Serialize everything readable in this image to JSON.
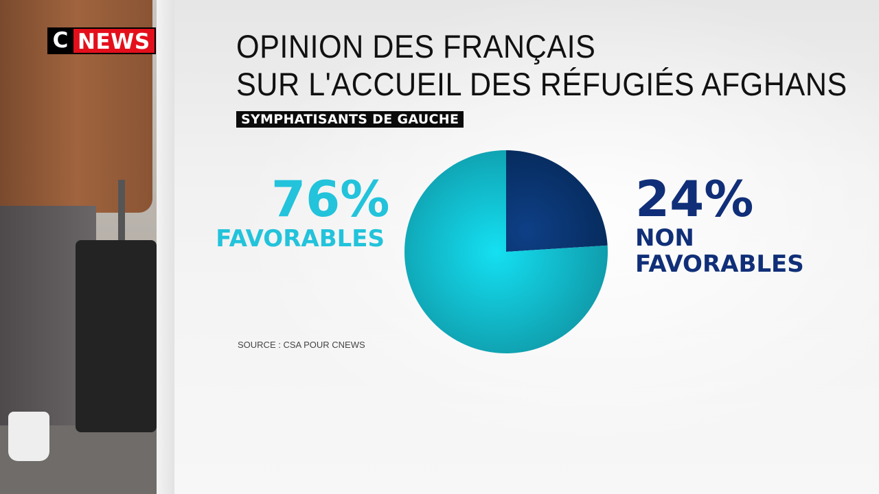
{
  "logo": {
    "c": "C",
    "news": "NEWS"
  },
  "title_line1": "OPINION DES FRANÇAIS",
  "title_line2": "SUR L'ACCUEIL DES RÉFUGIÉS AFGHANS",
  "subtitle": "SYMPHATISANTS DE GAUCHE",
  "source": "SOURCE : CSA POUR CNEWS",
  "chart_data": {
    "type": "pie",
    "title": "OPINION DES FRANÇAIS SUR L'ACCUEIL DES RÉFUGIÉS AFGHANS",
    "slices": [
      {
        "name": "NON FAVORABLES",
        "value": 24,
        "label": "24%",
        "color": "#0e3a7a"
      },
      {
        "name": "FAVORABLES",
        "value": 76,
        "label": "76%",
        "color": "#18b8cc"
      }
    ]
  },
  "labels": {
    "fav_pct": "76%",
    "fav_txt": "FAVORABLES",
    "non_pct": "24%",
    "non_txt1": "NON",
    "non_txt2": "FAVORABLES"
  }
}
